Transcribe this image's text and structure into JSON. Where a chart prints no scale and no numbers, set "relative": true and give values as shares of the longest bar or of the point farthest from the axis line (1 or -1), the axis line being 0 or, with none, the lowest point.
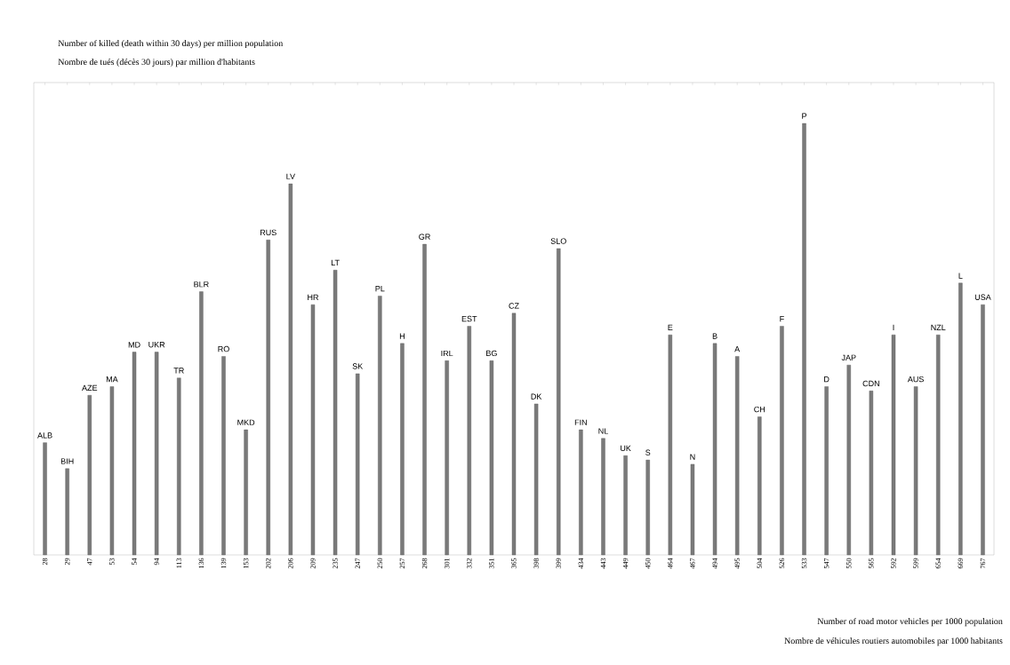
{
  "chart_data": {
    "type": "bar",
    "relative": true,
    "color": "#7a7a7a",
    "categories": [
      "28",
      "29",
      "47",
      "53",
      "54",
      "94",
      "113",
      "136",
      "139",
      "153",
      "202",
      "206",
      "209",
      "235",
      "247",
      "250",
      "257",
      "268",
      "301",
      "332",
      "351",
      "365",
      "398",
      "399",
      "434",
      "443",
      "449",
      "450",
      "464",
      "467",
      "494",
      "495",
      "504",
      "526",
      "533",
      "547",
      "550",
      "565",
      "592",
      "599",
      "654",
      "669",
      "767"
    ],
    "values": [
      0.26,
      0.2,
      0.37,
      0.39,
      0.47,
      0.47,
      0.41,
      0.61,
      0.46,
      0.29,
      0.73,
      0.86,
      0.58,
      0.66,
      0.42,
      0.6,
      0.49,
      0.72,
      0.45,
      0.53,
      0.45,
      0.56,
      0.35,
      0.71,
      0.29,
      0.27,
      0.23,
      0.22,
      0.51,
      0.21,
      0.49,
      0.46,
      0.32,
      0.53,
      1,
      0.39,
      0.44,
      0.38,
      0.51,
      0.39,
      0.51,
      0.63,
      0.58
    ],
    "annotations": [
      {
        "text": "ALB",
        "x": "28",
        "y": 0.26
      },
      {
        "text": "BIH",
        "x": "29",
        "y": 0.2
      },
      {
        "text": "AZE",
        "x": "47",
        "y": 0.37
      },
      {
        "text": "MA",
        "x": "53",
        "y": 0.39
      },
      {
        "text": "MD",
        "x": "54",
        "y": 0.47
      },
      {
        "text": "UKR",
        "x": "94",
        "y": 0.47
      },
      {
        "text": "TR",
        "x": "113",
        "y": 0.41
      },
      {
        "text": "BLR",
        "x": "136",
        "y": 0.61
      },
      {
        "text": "RO",
        "x": "139",
        "y": 0.46
      },
      {
        "text": "MKD",
        "x": "153",
        "y": 0.29
      },
      {
        "text": "RUS",
        "x": "202",
        "y": 0.73
      },
      {
        "text": "LV",
        "x": "206",
        "y": 0.86
      },
      {
        "text": "HR",
        "x": "209",
        "y": 0.58
      },
      {
        "text": "LT",
        "x": "235",
        "y": 0.66
      },
      {
        "text": "SK",
        "x": "247",
        "y": 0.42
      },
      {
        "text": "PL",
        "x": "250",
        "y": 0.6
      },
      {
        "text": "H",
        "x": "257",
        "y": 0.49
      },
      {
        "text": "GR",
        "x": "268",
        "y": 0.72
      },
      {
        "text": "IRL",
        "x": "301",
        "y": 0.45
      },
      {
        "text": "EST",
        "x": "332",
        "y": 0.53
      },
      {
        "text": "BG",
        "x": "351",
        "y": 0.45
      },
      {
        "text": "CZ",
        "x": "365",
        "y": 0.56
      },
      {
        "text": "DK",
        "x": "398",
        "y": 0.35
      },
      {
        "text": "SLO",
        "x": "399",
        "y": 0.71
      },
      {
        "text": "FIN",
        "x": "434",
        "y": 0.29
      },
      {
        "text": "NL",
        "x": "443",
        "y": 0.27
      },
      {
        "text": "UK",
        "x": "449",
        "y": 0.23
      },
      {
        "text": "S",
        "x": "450",
        "y": 0.22
      },
      {
        "text": "E",
        "x": "464",
        "y": 0.51
      },
      {
        "text": "N",
        "x": "467",
        "y": 0.21
      },
      {
        "text": "B",
        "x": "494",
        "y": 0.49
      },
      {
        "text": "A",
        "x": "495",
        "y": 0.46
      },
      {
        "text": "CH",
        "x": "504",
        "y": 0.32
      },
      {
        "text": "F",
        "x": "526",
        "y": 0.53
      },
      {
        "text": "P",
        "x": "533",
        "y": 1
      },
      {
        "text": "D",
        "x": "547",
        "y": 0.39
      },
      {
        "text": "JAP",
        "x": "550",
        "y": 0.44
      },
      {
        "text": "CDN",
        "x": "565",
        "y": 0.38
      },
      {
        "text": "I",
        "x": "592",
        "y": 0.51
      },
      {
        "text": "AUS",
        "x": "599",
        "y": 0.39
      },
      {
        "text": "NZL",
        "x": "654",
        "y": 0.51
      },
      {
        "text": "L",
        "x": "669",
        "y": 0.63
      },
      {
        "text": "USA",
        "x": "767",
        "y": 0.58
      },
      "Number of killed (death within 30 days) per million population",
      "Nombre de tués (décès 30 jours) par million d'habitants",
      "Number of road motor vehicles per 1000 population",
      "Nombre de véhicules routiers automobiles par 1000 habitants"
    ]
  }
}
